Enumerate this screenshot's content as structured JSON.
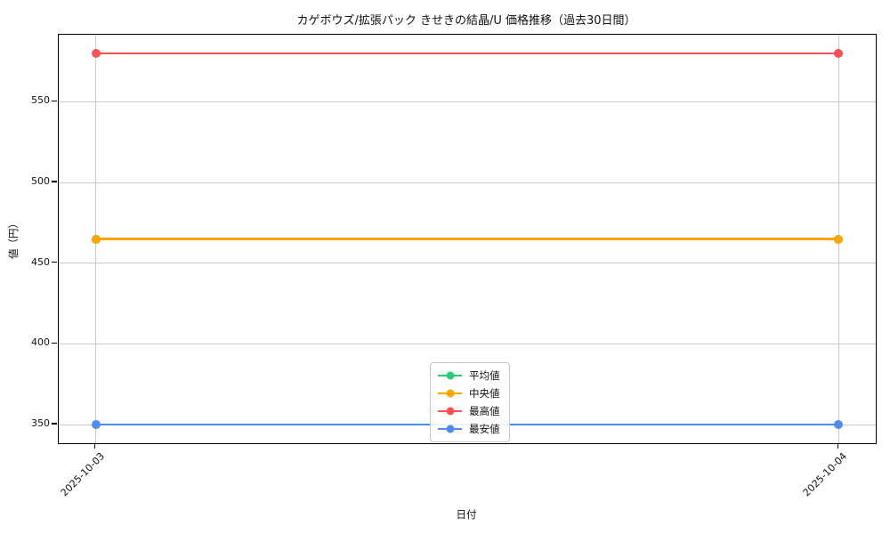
{
  "chart_data": {
    "type": "line",
    "title": "カゲボウズ/拡張パック きせきの結晶/U 価格推移（過去30日間）",
    "xlabel": "日付",
    "ylabel": "値（円）",
    "x": [
      "2025-10-03",
      "2025-10-04"
    ],
    "series": [
      {
        "name": "平均値",
        "color": "#2ecc71",
        "values": [
          465,
          465
        ]
      },
      {
        "name": "中央値",
        "color": "#ffa500",
        "values": [
          465,
          465
        ]
      },
      {
        "name": "最高値",
        "color": "#ff5151",
        "values": [
          580,
          580
        ]
      },
      {
        "name": "最安値",
        "color": "#4c8df5",
        "values": [
          350,
          350
        ]
      }
    ],
    "yticks": [
      350,
      400,
      450,
      500,
      550
    ],
    "ylim": [
      338.5,
      591.5
    ],
    "grid": true,
    "legend_position": "lower-center",
    "background": "#ffffff",
    "grid_color": "#c9c9c9"
  }
}
